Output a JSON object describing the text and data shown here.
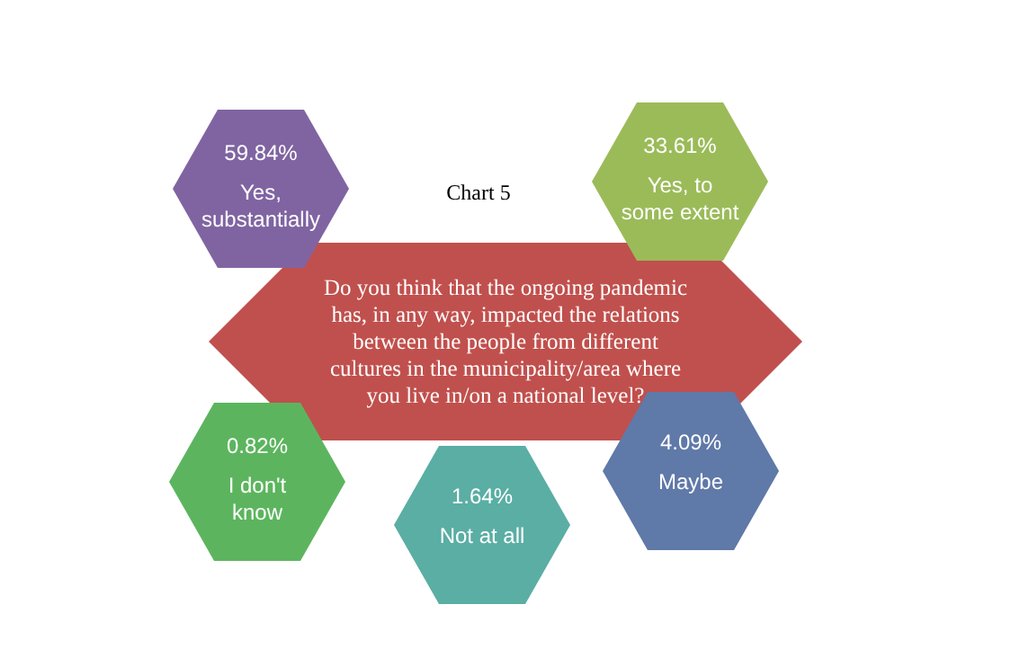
{
  "chart_data": {
    "type": "other",
    "title": "Chart 5",
    "subtitle": "Do you think that the ongoing pandemic has, in any way, impacted the relations between the people from different cultures in the municipality/area where you live in/on a national level?",
    "categories": [
      "Yes, substantially",
      "Yes, to some extent",
      "I don't know",
      "Not at all",
      "Maybe"
    ],
    "values": [
      59.84,
      33.61,
      0.82,
      1.64,
      4.09
    ],
    "value_labels": [
      "59.84%",
      "33.61%",
      "0.82%",
      "1.64%",
      "4.09%"
    ],
    "colors": [
      "#8064a2",
      "#9bbb59",
      "#5cb55e",
      "#5aaea4",
      "#5f79a8"
    ]
  }
}
